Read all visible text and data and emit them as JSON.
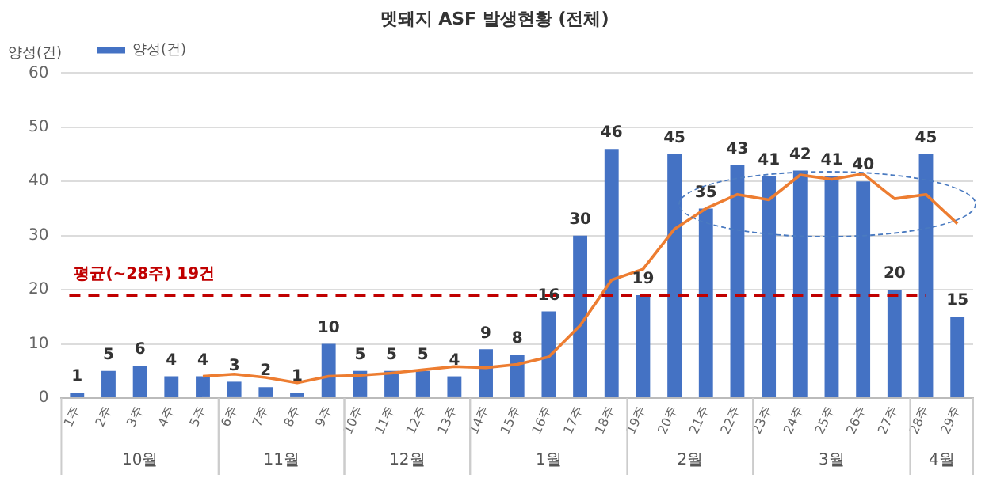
{
  "chart_data": {
    "type": "bar",
    "title": "멧돼지 ASF 발생현황 (전체)",
    "ylabel": "양성(건)",
    "categories": [
      "1주",
      "2주",
      "3주",
      "4주",
      "5주",
      "6주",
      "7주",
      "8주",
      "9주",
      "10주",
      "11주",
      "12주",
      "13주",
      "14주",
      "15주",
      "16주",
      "17주",
      "18주",
      "19주",
      "20주",
      "21주",
      "22주",
      "23주",
      "24주",
      "25주",
      "26주",
      "27주",
      "28주",
      "29주"
    ],
    "series": [
      {
        "name": "양성(건)",
        "color": "#4472c4",
        "values": [
          1,
          5,
          6,
          4,
          4,
          3,
          2,
          1,
          10,
          5,
          5,
          5,
          4,
          9,
          8,
          16,
          30,
          46,
          19,
          45,
          35,
          43,
          41,
          42,
          41,
          40,
          20,
          45,
          15
        ],
        "value_labels": [
          "1",
          "5",
          "6",
          "4",
          "4",
          "3",
          "2",
          "1",
          "10",
          "5",
          "5",
          "5",
          "4",
          "9",
          "8",
          "16",
          "30",
          "46",
          "19",
          "45",
          "35",
          "43",
          "41",
          "42",
          "41",
          "40",
          "20",
          "45",
          "15"
        ]
      },
      {
        "type": "line",
        "color": "#ed7d31",
        "values": [
          null,
          null,
          null,
          null,
          4,
          4.4,
          3.8,
          2.8,
          4,
          4.2,
          4.6,
          5.2,
          5.8,
          5.6,
          6.2,
          7.6,
          13.4,
          21.8,
          23.8,
          31.2,
          35,
          37.6,
          36.6,
          41.2,
          40.4,
          41.4,
          36.8,
          37.6,
          32.2
        ]
      }
    ],
    "ylim": [
      0,
      60
    ],
    "yticks": [
      0,
      10,
      20,
      30,
      40,
      50,
      60
    ],
    "grid": "y",
    "legend": "top left",
    "marker": "none",
    "line_style": "solid",
    "ref_lines": [
      {
        "axis": "y",
        "value": 19,
        "label": "평균(~28주) 19건",
        "color": "#c00000",
        "line_style": "dashed"
      }
    ],
    "annotations": [
      "10월",
      "11월",
      "12월",
      "1월",
      "2월",
      "3월",
      "4월"
    ]
  }
}
